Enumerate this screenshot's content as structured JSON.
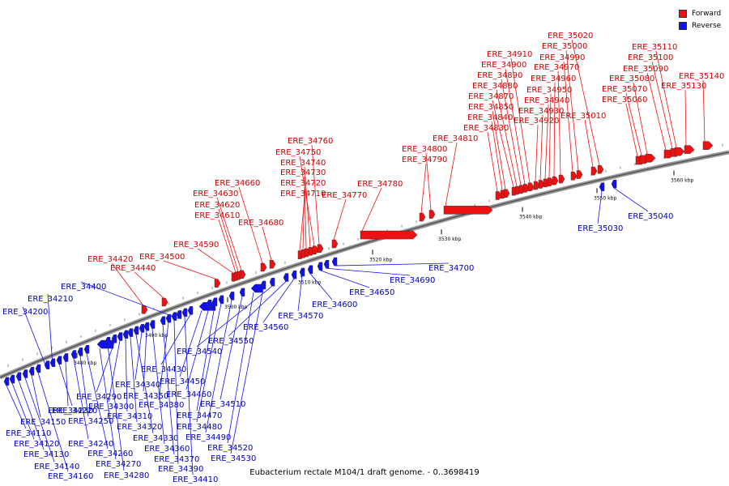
{
  "legend": {
    "forward_label": "Forward",
    "reverse_label": "Reverse",
    "forward_color": "#ee1111",
    "reverse_color": "#1111ee"
  },
  "caption": "Eubacterium rectale M104/1 draft genome. - 0..3698419",
  "scale_labels": [
    "3480 kbp",
    "3490 kbp",
    "3500 kbp",
    "3510 kbp",
    "3520 kbp",
    "3530 kbp",
    "3540 kbp",
    "3550 kbp",
    "3560 kbp"
  ],
  "forward_genes": [
    "ERE_34420",
    "ERE_34440",
    "ERE_34500",
    "ERE_34590",
    "ERE_34610",
    "ERE_34620",
    "ERE_34630",
    "ERE_34660",
    "ERE_34680",
    "ERE_34710",
    "ERE_34720",
    "ERE_34730",
    "ERE_34740",
    "ERE_34750",
    "ERE_34760",
    "ERE_34770",
    "ERE_34780",
    "ERE_34790",
    "ERE_34800",
    "ERE_34810",
    "ERE_34830",
    "ERE_34840",
    "ERE_34850",
    "ERE_34870",
    "ERE_34880",
    "ERE_34890",
    "ERE_34900",
    "ERE_34910",
    "ERE_34920",
    "ERE_34930",
    "ERE_34940",
    "ERE_34950",
    "ERE_34960",
    "ERE_34970",
    "ERE_34990",
    "ERE_35000",
    "ERE_35010",
    "ERE_35020",
    "ERE_35060",
    "ERE_35070",
    "ERE_35080",
    "ERE_35090",
    "ERE_35100",
    "ERE_35110",
    "ERE_35130",
    "ERE_35140"
  ],
  "reverse_genes": [
    "ERE_34110",
    "ERE_34120",
    "ERE_34130",
    "ERE_34140",
    "ERE_34150",
    "ERE_34160",
    "ERE_34200",
    "ERE_34210",
    "ERE_34220",
    "ERE_34230",
    "ERE_34240",
    "ERE_34250",
    "ERE_34260",
    "ERE_34270",
    "ERE_34280",
    "ERE_34290",
    "ERE_34300",
    "ERE_34310",
    "ERE_34320",
    "ERE_34330",
    "ERE_34340",
    "ERE_34350",
    "ERE_34360",
    "ERE_34370",
    "ERE_34380",
    "ERE_34390",
    "ERE_34400",
    "ERE_34410",
    "ERE_34430",
    "ERE_34450",
    "ERE_34460",
    "ERE_34470",
    "ERE_34480",
    "ERE_34490",
    "ERE_34510",
    "ERE_34520",
    "ERE_34530",
    "ERE_34540",
    "ERE_34550",
    "ERE_34560",
    "ERE_34570",
    "ERE_34600",
    "ERE_34650",
    "ERE_34690",
    "ERE_34700",
    "ERE_35030",
    "ERE_35040"
  ]
}
